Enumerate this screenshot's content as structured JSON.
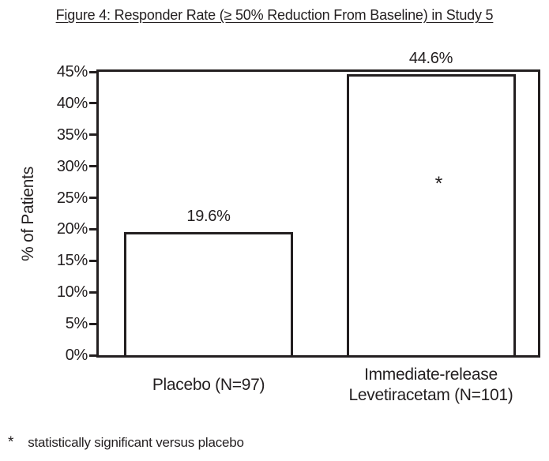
{
  "title": "Figure 4: Responder Rate (≥ 50% Reduction From Baseline) in Study 5",
  "chart_data": {
    "type": "bar",
    "title": "Figure 4: Responder Rate (≥ 50% Reduction From Baseline) in Study 5",
    "categories": [
      "Placebo (N=97)",
      "Immediate-release\nLevetiracetam (N=101)"
    ],
    "values": [
      19.6,
      44.6
    ],
    "value_labels": [
      "19.6%",
      "44.6%"
    ],
    "xlabel": "",
    "ylabel": "% of Patients",
    "ylim": [
      0,
      45
    ],
    "ytick_step": 5,
    "ytick_labels": [
      "0%",
      "5%",
      "10%",
      "15%",
      "20%",
      "25%",
      "30%",
      "35%",
      "40%",
      "45%"
    ],
    "grid": false,
    "legend": null,
    "bar_fill": "#ffffff",
    "bar_border": "#231f20",
    "annotations": [
      {
        "bar": 1,
        "text": "*",
        "meaning": "statistically significant versus placebo"
      }
    ]
  },
  "footnote": {
    "marker": "*",
    "text": "statistically significant versus placebo"
  },
  "colors": {
    "ink": "#231f20",
    "background": "#ffffff"
  }
}
